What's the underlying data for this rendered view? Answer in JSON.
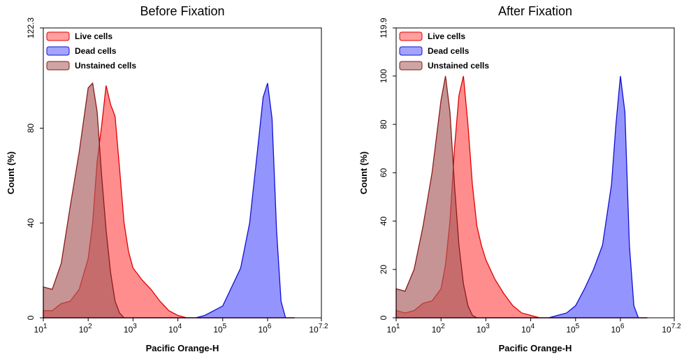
{
  "chart_data": [
    {
      "type": "area",
      "title": "Before Fixation",
      "x_label": "Pacific Orange-H",
      "y_label": "Count  (%)",
      "xscale": "log",
      "legend": "upper left",
      "xlim": [
        10,
        15848931.92
      ],
      "ylim": [
        0,
        122.3
      ],
      "xticks": [
        {
          "value": 10,
          "label": "10",
          "sup": "1"
        },
        {
          "value": 100,
          "label": "10",
          "sup": "2"
        },
        {
          "value": 1000,
          "label": "10",
          "sup": "3"
        },
        {
          "value": 10000,
          "label": "10",
          "sup": "4"
        },
        {
          "value": 100000,
          "label": "10",
          "sup": "5"
        },
        {
          "value": 1000000,
          "label": "10",
          "sup": "6"
        },
        {
          "value": 15848931.92,
          "label": "10",
          "sup": "7.2"
        }
      ],
      "yticks": [
        0,
        40,
        80,
        122.3
      ],
      "x": [
        10,
        15.8,
        25.1,
        39.8,
        63.1,
        100,
        125.9,
        158.5,
        199.5,
        251.2,
        316.2,
        398.1,
        501.2,
        631,
        794.3,
        1000,
        1584.9,
        2511.9,
        3981.1,
        6309.6,
        10000,
        15848.9,
        25118.9,
        39810.7,
        63095.7,
        100000,
        158489.3,
        251188.6,
        398107.2,
        630957.3,
        794328.2,
        1000000,
        1258925.4,
        1584893.2,
        1995262.3,
        2511886.4,
        3981071.7
      ],
      "series": [
        {
          "name": "Live cells",
          "color": "#e00000",
          "fill": "#ff5050",
          "label_color": "#e00000",
          "values": [
            3,
            3,
            6,
            7,
            12,
            25,
            40,
            66,
            81,
            98,
            90,
            85,
            63,
            40,
            28,
            21,
            16,
            12,
            7,
            3,
            1,
            0,
            0,
            0,
            0,
            0,
            0,
            0,
            0,
            0,
            0,
            0,
            0,
            0,
            0,
            0,
            0
          ]
        },
        {
          "name": "Dead cells",
          "color": "#1010d0",
          "fill": "#5a5aff",
          "label_color": "#1010d0",
          "values": [
            0,
            0,
            0,
            0,
            0,
            0,
            0,
            0,
            0,
            0,
            0,
            0,
            0,
            0,
            0,
            0,
            0,
            0,
            0,
            0,
            0,
            0,
            0,
            1,
            3,
            5,
            13,
            21,
            40,
            75,
            93,
            99,
            84,
            37,
            7,
            0,
            0
          ]
        },
        {
          "name": "Unstained cells",
          "color": "#8b1a1a",
          "fill": "#a85a5a",
          "label_color": "#b01818",
          "values": [
            13,
            12,
            23,
            47,
            70,
            97,
            99,
            87,
            60,
            37,
            19,
            7,
            2,
            0,
            0,
            0,
            0,
            0,
            0,
            0,
            0,
            0,
            0,
            0,
            0,
            0,
            0,
            0,
            0,
            0,
            0,
            0,
            0,
            0,
            0,
            0,
            0
          ]
        }
      ]
    },
    {
      "type": "area",
      "title": "After Fixation",
      "x_label": "Pacific Orange-H",
      "y_label": "Count  (%)",
      "xscale": "log",
      "legend": "upper left",
      "xlim": [
        10,
        15848931.92
      ],
      "ylim": [
        0,
        119.9
      ],
      "xticks": [
        {
          "value": 10,
          "label": "10",
          "sup": "1"
        },
        {
          "value": 100,
          "label": "10",
          "sup": "2"
        },
        {
          "value": 1000,
          "label": "10",
          "sup": "3"
        },
        {
          "value": 10000,
          "label": "10",
          "sup": "4"
        },
        {
          "value": 100000,
          "label": "10",
          "sup": "5"
        },
        {
          "value": 1000000,
          "label": "10",
          "sup": "6"
        },
        {
          "value": 15848931.92,
          "label": "10",
          "sup": "7.2"
        }
      ],
      "yticks": [
        0,
        20,
        40,
        60,
        80,
        100,
        119.9
      ],
      "x": [
        10,
        15.8,
        25.1,
        39.8,
        63.1,
        100,
        125.9,
        158.5,
        199.5,
        251.2,
        316.2,
        398.1,
        501.2,
        631,
        794.3,
        1000,
        1584.9,
        2511.9,
        3981.1,
        6309.6,
        10000,
        15848.9,
        25118.9,
        39810.7,
        63095.7,
        100000,
        158489.3,
        251188.6,
        398107.2,
        630957.3,
        794328.2,
        1000000,
        1258925.4,
        1584893.2,
        1995262.3,
        2511886.4,
        3981071.7
      ],
      "series": [
        {
          "name": "Live cells",
          "color": "#e00000",
          "fill": "#ff5050",
          "label_color": "#e00000",
          "values": [
            3,
            2,
            3,
            6,
            7,
            12,
            22,
            40,
            70,
            92,
            100,
            80,
            55,
            38,
            30,
            24,
            16,
            10,
            5,
            2,
            1,
            0,
            0,
            0,
            0,
            0,
            0,
            0,
            0,
            0,
            0,
            0,
            0,
            0,
            0,
            0,
            0
          ]
        },
        {
          "name": "Dead cells",
          "color": "#1010d0",
          "fill": "#5a5aff",
          "label_color": "#1010d0",
          "values": [
            0,
            0,
            0,
            0,
            0,
            0,
            0,
            0,
            0,
            0,
            0,
            0,
            0,
            0,
            0,
            0,
            0,
            0,
            0,
            0,
            0,
            0,
            0,
            1,
            2,
            5,
            12,
            20,
            30,
            55,
            80,
            100,
            85,
            30,
            5,
            0,
            0
          ]
        },
        {
          "name": "Unstained cells",
          "color": "#8b1a1a",
          "fill": "#a85a5a",
          "label_color": "#b01818",
          "values": [
            12,
            11,
            20,
            38,
            60,
            90,
            100,
            85,
            55,
            30,
            14,
            5,
            1,
            0,
            0,
            0,
            0,
            0,
            0,
            0,
            0,
            0,
            0,
            0,
            0,
            0,
            0,
            0,
            0,
            0,
            0,
            0,
            0,
            0,
            0,
            0,
            0
          ]
        }
      ]
    }
  ]
}
